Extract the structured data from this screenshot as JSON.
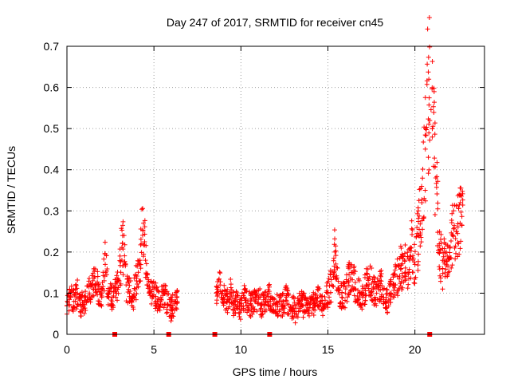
{
  "chart_data": {
    "type": "scatter",
    "title": "Day 247 of 2017, SRMTID for receiver cn45",
    "xlabel": "GPS time / hours",
    "ylabel": "SRMTID / TECUs",
    "xlim": [
      0,
      24
    ],
    "ylim": [
      0,
      0.7
    ],
    "xticks": [
      "0",
      "5",
      "10",
      "15",
      "20"
    ],
    "yticks": [
      "0",
      "0.1",
      "0.2",
      "0.3",
      "0.4",
      "0.5",
      "0.6",
      "0.7"
    ],
    "grid": true,
    "marker": "+",
    "color": "#ff0000",
    "series": [
      {
        "name": "SRMTID",
        "x": [
          0.0,
          0.2,
          0.4,
          0.6,
          0.8,
          1.0,
          1.2,
          1.4,
          1.6,
          1.8,
          2.0,
          2.2,
          2.4,
          2.6,
          2.8,
          3.0,
          3.2,
          3.4,
          3.6,
          3.8,
          4.0,
          4.2,
          4.4,
          4.6,
          4.8,
          5.0,
          5.2,
          5.4,
          5.6,
          5.8,
          6.0,
          6.2,
          8.6,
          8.8,
          9.0,
          9.2,
          9.4,
          9.6,
          9.8,
          10.0,
          10.2,
          10.4,
          10.6,
          10.8,
          11.0,
          11.2,
          11.4,
          11.6,
          11.8,
          12.0,
          12.2,
          12.4,
          12.6,
          12.8,
          13.0,
          13.2,
          13.4,
          13.6,
          13.8,
          14.0,
          14.2,
          14.4,
          14.6,
          14.8,
          15.0,
          15.2,
          15.4,
          15.6,
          15.8,
          16.0,
          16.2,
          16.4,
          16.6,
          16.8,
          17.0,
          17.2,
          17.4,
          17.6,
          17.8,
          18.0,
          18.2,
          18.4,
          18.6,
          18.8,
          19.0,
          19.2,
          19.4,
          19.6,
          19.8,
          20.0,
          20.2,
          20.4,
          20.6,
          20.8,
          21.0,
          21.2,
          21.4,
          21.6,
          21.8,
          22.0,
          22.2,
          22.4,
          22.6
        ],
        "y": [
          0.07,
          0.09,
          0.08,
          0.1,
          0.07,
          0.08,
          0.09,
          0.12,
          0.14,
          0.11,
          0.09,
          0.17,
          0.1,
          0.09,
          0.11,
          0.13,
          0.24,
          0.12,
          0.1,
          0.09,
          0.13,
          0.18,
          0.27,
          0.12,
          0.1,
          0.11,
          0.08,
          0.09,
          0.1,
          0.07,
          0.06,
          0.08,
          0.1,
          0.12,
          0.09,
          0.08,
          0.1,
          0.07,
          0.08,
          0.06,
          0.09,
          0.08,
          0.07,
          0.08,
          0.09,
          0.07,
          0.08,
          0.1,
          0.07,
          0.06,
          0.08,
          0.07,
          0.09,
          0.06,
          0.07,
          0.05,
          0.08,
          0.07,
          0.06,
          0.08,
          0.07,
          0.09,
          0.08,
          0.07,
          0.1,
          0.12,
          0.2,
          0.11,
          0.09,
          0.1,
          0.13,
          0.15,
          0.11,
          0.1,
          0.09,
          0.12,
          0.14,
          0.11,
          0.1,
          0.13,
          0.09,
          0.08,
          0.1,
          0.12,
          0.14,
          0.16,
          0.18,
          0.15,
          0.21,
          0.17,
          0.24,
          0.32,
          0.45,
          0.62,
          0.5,
          0.38,
          0.22,
          0.16,
          0.2,
          0.21,
          0.24,
          0.25,
          0.27
        ]
      }
    ],
    "gap_markers_x": [
      2.75,
      5.85,
      8.5,
      11.65,
      20.85
    ]
  }
}
